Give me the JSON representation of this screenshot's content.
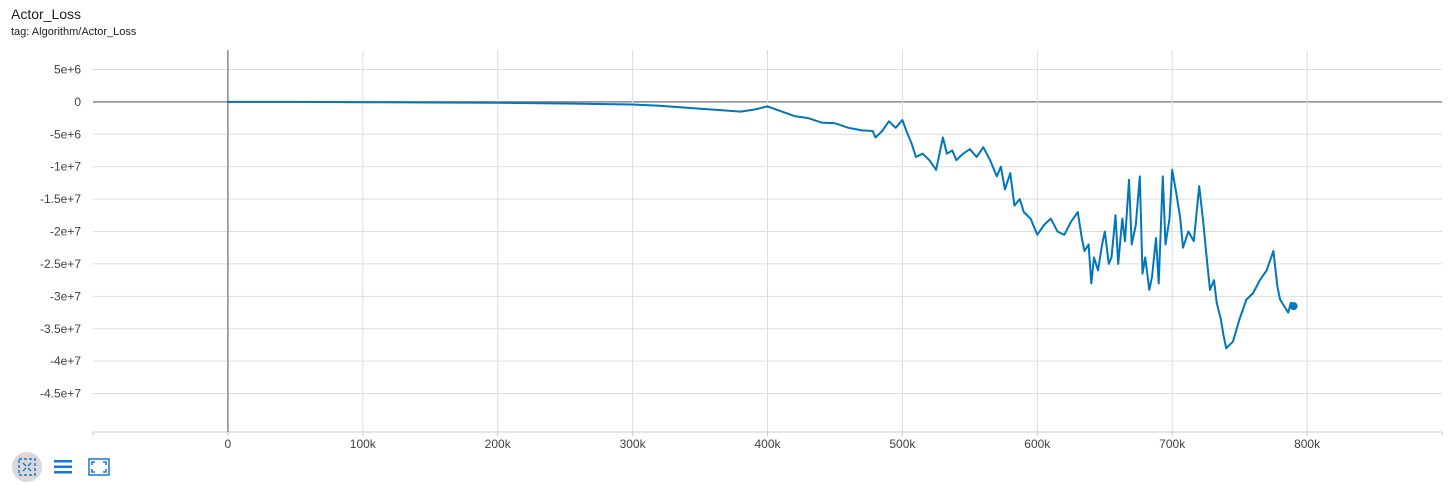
{
  "header": {
    "title": "Actor_Loss",
    "tag": "tag: Algorithm/Actor_Loss"
  },
  "toolbar": {
    "icons": [
      "fit-domain-icon",
      "list-icon",
      "expand-icon"
    ],
    "accent": "#1976d2"
  },
  "chart_data": {
    "type": "line",
    "grid": true,
    "line_color": "#0077bb",
    "xlim": [
      -100000,
      900000
    ],
    "ylim": [
      -50000000,
      8000000
    ],
    "x_ticks": [
      0,
      100000,
      200000,
      300000,
      400000,
      500000,
      600000,
      700000,
      800000
    ],
    "x_tick_labels": [
      "0",
      "100k",
      "200k",
      "300k",
      "400k",
      "500k",
      "600k",
      "700k",
      "800k"
    ],
    "y_ticks": [
      5000000,
      0,
      -5000000,
      -10000000,
      -15000000,
      -20000000,
      -25000000,
      -30000000,
      -35000000,
      -40000000,
      -45000000
    ],
    "y_tick_labels": [
      "5e+6",
      "0",
      "-5e+6",
      "-1e+7",
      "-1.5e+7",
      "-2e+7",
      "-2.5e+7",
      "-3e+7",
      "-3.5e+7",
      "-4e+7",
      "-4.5e+7"
    ],
    "series": [
      {
        "x": [
          0,
          50000,
          100000,
          150000,
          200000,
          250000,
          300000,
          320000,
          340000,
          360000,
          380000,
          390000,
          400000,
          420000,
          430000,
          440000,
          450000,
          460000,
          470000,
          478000,
          480000,
          485000,
          490000,
          495000,
          500000,
          503000,
          507000,
          510000,
          515000,
          520000,
          525000,
          530000,
          533000,
          537000,
          540000,
          545000,
          550000,
          555000,
          560000,
          565000,
          570000,
          573000,
          576000,
          580000,
          583000,
          587000,
          590000,
          595000,
          600000,
          605000,
          610000,
          615000,
          620000,
          625000,
          630000,
          633000,
          635000,
          638000,
          640000,
          642000,
          645000,
          648000,
          650000,
          653000,
          655000,
          658000,
          660000,
          663000,
          665000,
          668000,
          670000,
          673000,
          676000,
          678000,
          680000,
          683000,
          685000,
          688000,
          690000,
          693000,
          695000,
          698000,
          700000,
          703000,
          706000,
          708000,
          712000,
          716000,
          720000,
          723000,
          726000,
          728000,
          731000,
          733000,
          736000,
          738000,
          740000,
          745000,
          750000,
          755000,
          760000,
          765000,
          770000,
          775000,
          778000,
          780000,
          783000,
          786000,
          788000,
          790000
        ],
        "y": [
          0,
          0,
          -50000,
          -100000,
          -150000,
          -250000,
          -400000,
          -600000,
          -900000,
          -1200000,
          -1500000,
          -1200000,
          -700000,
          -2200000,
          -2500000,
          -3200000,
          -3300000,
          -4000000,
          -4400000,
          -4500000,
          -5500000,
          -4500000,
          -3000000,
          -4000000,
          -2800000,
          -4500000,
          -6500000,
          -8500000,
          -8000000,
          -9000000,
          -10500000,
          -5500000,
          -8000000,
          -7500000,
          -9000000,
          -8000000,
          -7300000,
          -8500000,
          -7000000,
          -9000000,
          -11500000,
          -10000000,
          -13500000,
          -11000000,
          -16000000,
          -15000000,
          -17000000,
          -18000000,
          -20500000,
          -19000000,
          -18000000,
          -20000000,
          -20500000,
          -18500000,
          -17000000,
          -21000000,
          -23000000,
          -22000000,
          -28000000,
          -24000000,
          -26000000,
          -22000000,
          -20000000,
          -25000000,
          -24000000,
          -17500000,
          -25000000,
          -18000000,
          -21500000,
          -12000000,
          -22000000,
          -19000000,
          -11500000,
          -26500000,
          -24000000,
          -29000000,
          -27000000,
          -21000000,
          -28000000,
          -11500000,
          -22000000,
          -18000000,
          -10500000,
          -14000000,
          -18000000,
          -22500000,
          -20000000,
          -21500000,
          -13000000,
          -18500000,
          -25000000,
          -29000000,
          -27500000,
          -31000000,
          -33500000,
          -36000000,
          -38000000,
          -37000000,
          -33500000,
          -30500000,
          -29500000,
          -27500000,
          -26000000,
          -23000000,
          -28500000,
          -30500000,
          -31500000,
          -32500000,
          -31000000,
          -31500000
        ]
      }
    ]
  }
}
